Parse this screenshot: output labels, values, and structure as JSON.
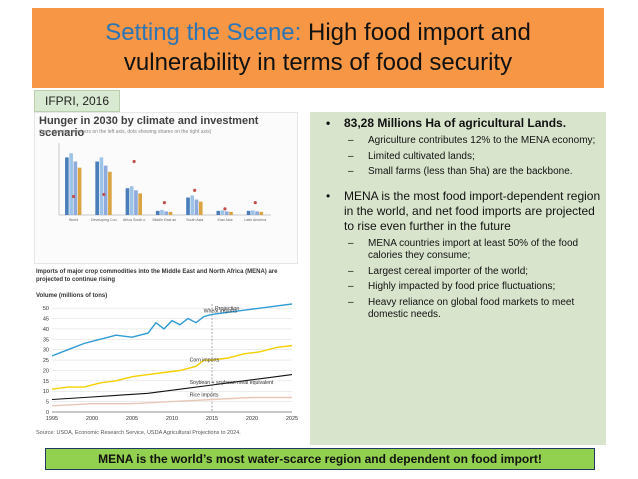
{
  "title": {
    "accent": "Setting the Scene:",
    "rest": " High food import and vulnerability in terms of food security"
  },
  "source_tag": "IFPRI, 2016",
  "figure_hunger": {
    "title": "Hunger in 2030 by climate and investment scenario",
    "subtitle": "(bars showing numbers on the left axis, dots showing shares on the right axis)",
    "chart_data": {
      "type": "bar",
      "categories": [
        "World",
        "Developing Countries",
        "Africa South of the Sahara",
        "Middle East and North Africa",
        "South Asia",
        "East Asia",
        "Latin America and Caribbean"
      ],
      "series": [
        {
          "values": [
            560,
            520,
            260,
            40,
            170,
            40,
            40
          ]
        },
        {
          "values": [
            600,
            560,
            280,
            50,
            190,
            45,
            45
          ]
        },
        {
          "values": [
            520,
            480,
            240,
            35,
            150,
            35,
            35
          ]
        },
        {
          "values": [
            460,
            420,
            210,
            30,
            130,
            30,
            30
          ]
        }
      ],
      "dot_series": [
        {
          "values": [
            9,
            10,
            26,
            6,
            12,
            3,
            6
          ]
        }
      ],
      "ylim": [
        0,
        700
      ],
      "y2lim": [
        0,
        35
      ]
    }
  },
  "figure_imports": {
    "title": "Imports of major crop commodities into the Middle East and North Africa (MENA) are projected to continue rising",
    "ylabel": "Volume (millions of tons)",
    "annotation": "Projection",
    "source": "Source: USDA, Economic Research Service, USDA Agricultural Projections to 2024.",
    "chart_data": {
      "type": "line",
      "x_ticks": [
        "1995",
        "2000",
        "2005",
        "2010",
        "2015",
        "2020",
        "2025"
      ],
      "y_ticks": [
        "0",
        "5",
        "10",
        "15",
        "20",
        "25",
        "30",
        "35",
        "40",
        "45",
        "50"
      ],
      "xlim": [
        1995,
        2025
      ],
      "ylim": [
        0,
        52
      ],
      "projection_start": 2015,
      "series": [
        {
          "name": "Wheat imports",
          "color": "#2e9bd6",
          "x": [
            1995,
            1997,
            1999,
            2001,
            2003,
            2005,
            2007,
            2008,
            2009,
            2010,
            2011,
            2012,
            2013,
            2014,
            2015,
            2017,
            2019,
            2021,
            2023,
            2025
          ],
          "y": [
            27,
            30,
            33,
            35,
            37,
            36,
            38,
            43,
            40,
            44,
            42,
            45,
            43,
            46,
            47,
            48,
            49,
            50,
            51,
            52
          ]
        },
        {
          "name": "Corn imports",
          "color": "#f5d000",
          "x": [
            1995,
            1997,
            1999,
            2001,
            2003,
            2005,
            2007,
            2009,
            2011,
            2013,
            2014,
            2015,
            2017,
            2019,
            2021,
            2023,
            2025
          ],
          "y": [
            11,
            12,
            12,
            14,
            15,
            17,
            18,
            19,
            20,
            22,
            25,
            25,
            26,
            28,
            29,
            31,
            32
          ]
        },
        {
          "name": "Soybean + soybean meal equivalent",
          "color": "#111111",
          "x": [
            1995,
            1999,
            2003,
            2007,
            2011,
            2015,
            2019,
            2023,
            2025
          ],
          "y": [
            6,
            7,
            8,
            9,
            11,
            13,
            15,
            17,
            18
          ]
        },
        {
          "name": "Rice imports",
          "color": "#e9c7b7",
          "x": [
            1995,
            2000,
            2005,
            2010,
            2015,
            2020,
            2025
          ],
          "y": [
            3,
            4,
            4,
            5,
            6,
            7,
            7
          ]
        }
      ]
    }
  },
  "bullets": [
    {
      "text": "83,28 Millions Ha of agricultural Lands.",
      "sub": [
        "Agriculture contributes 12% to the MENA economy;",
        "Limited cultivated lands;",
        "Small farms (less than 5ha) are the backbone."
      ]
    },
    {
      "text": "MENA is the most food import-dependent region in the world, and net food imports are projected to rise even further in the future",
      "sub": [
        "MENA countries import at least 50% of the food calories they consume;",
        "Largest cereal importer of the world;",
        "Highly impacted by food price fluctuations;",
        "Heavy reliance on global food markets to meet domestic needs."
      ]
    }
  ],
  "bullet_glyph": "•",
  "sub_glyph": "–",
  "footer": "MENA is the world’s most water-scarce region and dependent on food import!"
}
